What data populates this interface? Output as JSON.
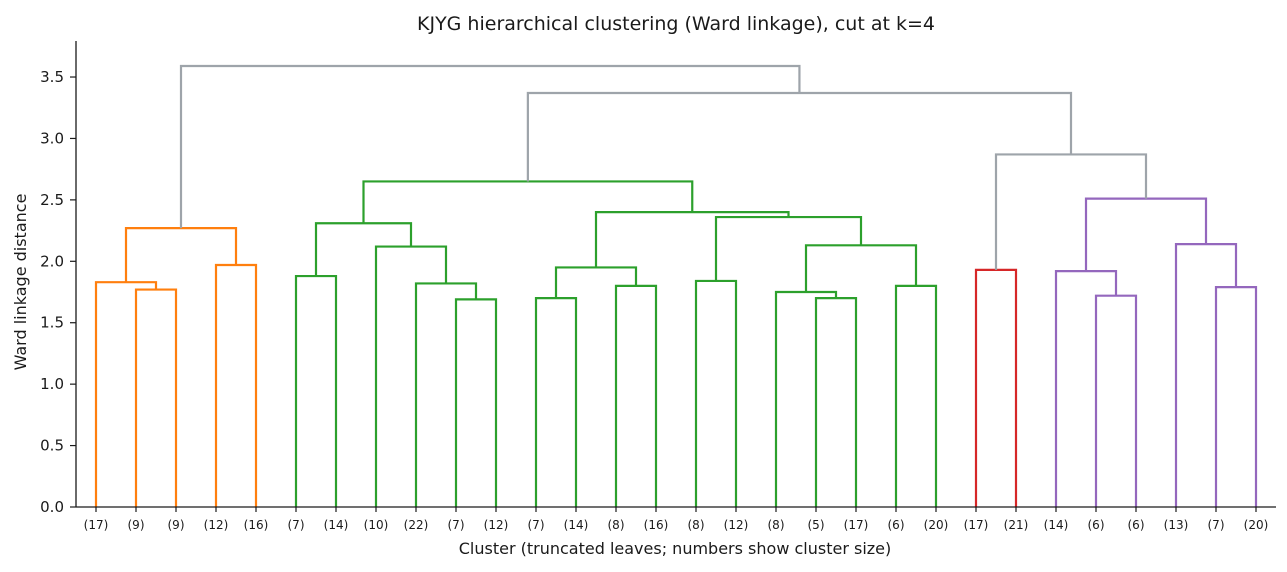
{
  "chart_data": {
    "type": "dendrogram",
    "title": "KJYG hierarchical clustering (Ward linkage), cut at k=4",
    "xlabel": "Cluster (truncated leaves; numbers show cluster size)",
    "ylabel": "Ward linkage distance",
    "ylim": [
      0,
      3.78
    ],
    "yticks": [
      "0.0",
      "0.5",
      "1.0",
      "1.5",
      "2.0",
      "2.5",
      "3.0",
      "3.5"
    ],
    "yticks_values": [
      0,
      0.5,
      1.0,
      1.5,
      2.0,
      2.5,
      3.0,
      3.5
    ],
    "grid": false,
    "colors": {
      "cluster1": "#ff7f0e",
      "cluster2": "#2ca02c",
      "cluster3": "#d62728",
      "cluster4": "#9467bd",
      "above_cut": "#9ea4aa"
    },
    "leaves": [
      "(17)",
      "(9)",
      "(9)",
      "(12)",
      "(16)",
      "(7)",
      "(14)",
      "(10)",
      "(22)",
      "(7)",
      "(12)",
      "(7)",
      "(14)",
      "(8)",
      "(16)",
      "(8)",
      "(12)",
      "(8)",
      "(5)",
      "(17)",
      "(6)",
      "(20)",
      "(17)",
      "(21)",
      "(14)",
      "(6)",
      "(6)",
      "(13)",
      "(7)",
      "(20)"
    ],
    "merges": [
      {
        "left": "L1",
        "right": "L2",
        "height": 1.77,
        "color": "cluster1"
      },
      {
        "left": "L0",
        "right": "M0",
        "height": 1.83,
        "color": "cluster1"
      },
      {
        "left": "L3",
        "right": "L4",
        "height": 1.97,
        "color": "cluster1"
      },
      {
        "left": "M1",
        "right": "M2",
        "height": 2.27,
        "color": "cluster1"
      },
      {
        "left": "L5",
        "right": "L6",
        "height": 1.88,
        "color": "cluster2"
      },
      {
        "left": "L9",
        "right": "L10",
        "height": 1.69,
        "color": "cluster2"
      },
      {
        "left": "L8",
        "right": "M5",
        "height": 1.82,
        "color": "cluster2"
      },
      {
        "left": "L7",
        "right": "M6",
        "height": 2.12,
        "color": "cluster2"
      },
      {
        "left": "M4",
        "right": "M7",
        "height": 2.31,
        "color": "cluster2"
      },
      {
        "left": "L11",
        "right": "L12",
        "height": 1.7,
        "color": "cluster2"
      },
      {
        "left": "L13",
        "right": "L14",
        "height": 1.8,
        "color": "cluster2"
      },
      {
        "left": "M9",
        "right": "M10",
        "height": 1.95,
        "color": "cluster2"
      },
      {
        "left": "L15",
        "right": "L16",
        "height": 1.84,
        "color": "cluster2"
      },
      {
        "left": "L18",
        "right": "L19",
        "height": 1.7,
        "color": "cluster2"
      },
      {
        "left": "L17",
        "right": "M13",
        "height": 1.75,
        "color": "cluster2"
      },
      {
        "left": "L20",
        "right": "L21",
        "height": 1.8,
        "color": "cluster2"
      },
      {
        "left": "M14",
        "right": "M15",
        "height": 2.13,
        "color": "cluster2"
      },
      {
        "left": "M12",
        "right": "M16",
        "height": 2.36,
        "color": "cluster2"
      },
      {
        "left": "M11",
        "right": "M17",
        "height": 2.4,
        "color": "cluster2"
      },
      {
        "left": "M8",
        "right": "M18",
        "height": 2.65,
        "color": "cluster2"
      },
      {
        "left": "L22",
        "right": "L23",
        "height": 1.93,
        "color": "cluster3"
      },
      {
        "left": "L25",
        "right": "L26",
        "height": 1.72,
        "color": "cluster4"
      },
      {
        "left": "L24",
        "right": "M21",
        "height": 1.92,
        "color": "cluster4"
      },
      {
        "left": "L28",
        "right": "L29",
        "height": 1.79,
        "color": "cluster4"
      },
      {
        "left": "L27",
        "right": "M23",
        "height": 2.14,
        "color": "cluster4"
      },
      {
        "left": "M22",
        "right": "M24",
        "height": 2.51,
        "color": "cluster4"
      },
      {
        "left": "M20",
        "right": "M25",
        "height": 2.87,
        "color": "above_cut"
      },
      {
        "left": "M19",
        "right": "M26",
        "height": 3.37,
        "color": "above_cut"
      },
      {
        "left": "M3",
        "right": "M27",
        "height": 3.59,
        "color": "above_cut"
      }
    ]
  }
}
